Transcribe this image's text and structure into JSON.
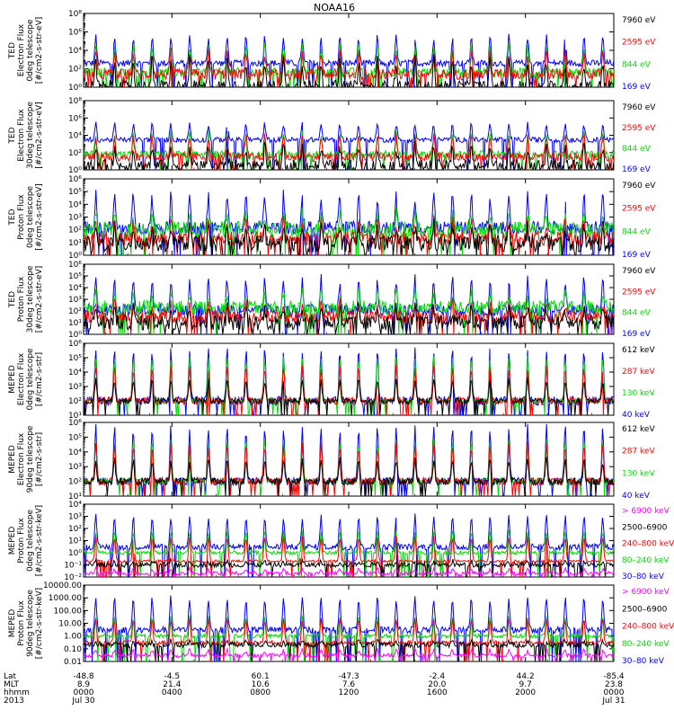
{
  "title": "NOAA16",
  "chart_data": [
    {
      "type": "line",
      "panel_id": "ted-electron-0deg",
      "ylabel": [
        "TED",
        "Electron Flux",
        "0deg telescope",
        "[#/cm2-s-str-eV]"
      ],
      "yscale": "log",
      "ylim": [
        1,
        100000000
      ],
      "yticks": [
        {
          "label": "10⁰",
          "value": 1
        },
        {
          "label": "10²",
          "value": 100
        },
        {
          "label": "10⁴",
          "value": 10000
        },
        {
          "label": "10⁶",
          "value": 1000000
        },
        {
          "label": "10⁸",
          "value": 100000000
        }
      ],
      "series": [
        {
          "name": "7960 eV",
          "color": "#000000",
          "base": 1,
          "peak": 800,
          "noise": 1.5,
          "floor": 1
        },
        {
          "name": "2595 eV",
          "color": "#ff0000",
          "base": 25,
          "peak": 6000,
          "noise": 1.2,
          "floor": 1
        },
        {
          "name": "844 eV",
          "color": "#00dd00",
          "base": 40,
          "peak": 30000,
          "noise": 1.0,
          "floor": 1
        },
        {
          "name": "169 eV",
          "color": "#0000ff",
          "base": 400,
          "peak": 300000,
          "noise": 0.7,
          "floor": 1
        }
      ]
    },
    {
      "type": "line",
      "panel_id": "ted-electron-30deg",
      "ylabel": [
        "TED",
        "Electron Flux",
        "30deg telescope",
        "[#/cm2-s-str-eV]"
      ],
      "yscale": "log",
      "ylim": [
        1,
        100000000
      ],
      "yticks": [
        {
          "label": "10⁰",
          "value": 1
        },
        {
          "label": "10²",
          "value": 100
        },
        {
          "label": "10⁴",
          "value": 10000
        },
        {
          "label": "10⁶",
          "value": 1000000
        },
        {
          "label": "10⁸",
          "value": 100000000
        }
      ],
      "series": [
        {
          "name": "7960 eV",
          "color": "#000000",
          "base": 3,
          "peak": 500,
          "noise": 1.4,
          "floor": 1
        },
        {
          "name": "2595 eV",
          "color": "#ff0000",
          "base": 30,
          "peak": 8000,
          "noise": 1.0,
          "floor": 1
        },
        {
          "name": "844 eV",
          "color": "#00dd00",
          "base": 60,
          "peak": 20000,
          "noise": 0.9,
          "floor": 1
        },
        {
          "name": "169 eV",
          "color": "#0000ff",
          "base": 3000,
          "peak": 200000,
          "noise": 0.6,
          "floor": 1
        }
      ]
    },
    {
      "type": "line",
      "panel_id": "ted-proton-0deg",
      "ylabel": [
        "TED",
        "Proton Flux",
        "0deg telescope",
        "[#/cm2-s-str-eV]"
      ],
      "yscale": "log",
      "ylim": [
        1,
        1000000
      ],
      "yticks": [
        {
          "label": "10⁰",
          "value": 1
        },
        {
          "label": "10¹",
          "value": 10
        },
        {
          "label": "10²",
          "value": 100
        },
        {
          "label": "10³",
          "value": 1000
        },
        {
          "label": "10⁴",
          "value": 10000
        },
        {
          "label": "10⁵",
          "value": 100000
        },
        {
          "label": "10⁶",
          "value": 1000000
        }
      ],
      "series": [
        {
          "name": "7960 eV",
          "color": "#000000",
          "base": 8,
          "peak": 200,
          "noise": 1.3,
          "floor": 1
        },
        {
          "name": "2595 eV",
          "color": "#ff0000",
          "base": 20,
          "peak": 400,
          "noise": 1.1,
          "floor": 1
        },
        {
          "name": "844 eV",
          "color": "#00dd00",
          "base": 100,
          "peak": 1500,
          "noise": 1.3,
          "floor": 1
        },
        {
          "name": "169 eV",
          "color": "#0000ff",
          "base": 150,
          "peak": 50000,
          "noise": 1.0,
          "floor": 1
        }
      ]
    },
    {
      "type": "line",
      "panel_id": "ted-proton-30deg",
      "ylabel": [
        "TED",
        "Proton Flux",
        "30deg telescope",
        "[#/cm2-s-str-eV]"
      ],
      "yscale": "log",
      "ylim": [
        1,
        1000000
      ],
      "yticks": [
        {
          "label": "10⁰",
          "value": 1
        },
        {
          "label": "10¹",
          "value": 10
        },
        {
          "label": "10²",
          "value": 100
        },
        {
          "label": "10³",
          "value": 1000
        },
        {
          "label": "10⁴",
          "value": 10000
        },
        {
          "label": "10⁵",
          "value": 100000
        },
        {
          "label": "10⁶",
          "value": 1000000
        }
      ],
      "series": [
        {
          "name": "7960 eV",
          "color": "#000000",
          "base": 10,
          "peak": 200,
          "noise": 1.3,
          "floor": 1
        },
        {
          "name": "2595 eV",
          "color": "#ff0000",
          "base": 30,
          "peak": 400,
          "noise": 1.1,
          "floor": 1
        },
        {
          "name": "844 eV",
          "color": "#00dd00",
          "base": 200,
          "peak": 3000,
          "noise": 1.2,
          "floor": 1
        },
        {
          "name": "169 eV",
          "color": "#0000ff",
          "base": 120,
          "peak": 60000,
          "noise": 1.0,
          "floor": 1
        }
      ]
    },
    {
      "type": "line",
      "panel_id": "meped-electron-0deg",
      "ylabel": [
        "MEPED",
        "Electron Flux",
        "0deg telescope",
        "[#/cm2-s-str]"
      ],
      "yscale": "log",
      "ylim": [
        10,
        1000000
      ],
      "yticks": [
        {
          "label": "10¹",
          "value": 10
        },
        {
          "label": "10²",
          "value": 100
        },
        {
          "label": "10³",
          "value": 1000
        },
        {
          "label": "10⁴",
          "value": 10000
        },
        {
          "label": "10⁵",
          "value": 100000
        },
        {
          "label": "10⁶",
          "value": 1000000
        }
      ],
      "series": [
        {
          "name": "612 keV",
          "color": "#000000",
          "base": 100,
          "peak": 3000,
          "noise": 0.4,
          "floor": 10
        },
        {
          "name": "287 keV",
          "color": "#ff0000",
          "base": 100,
          "peak": 20000,
          "noise": 0.5,
          "floor": 10
        },
        {
          "name": "130 keV",
          "color": "#00dd00",
          "base": 100,
          "peak": 100000,
          "noise": 0.3,
          "floor": 10
        },
        {
          "name": "40 keV",
          "color": "#0000ff",
          "base": 100,
          "peak": 400000,
          "noise": 0.6,
          "floor": 10
        }
      ]
    },
    {
      "type": "line",
      "panel_id": "meped-electron-90deg",
      "ylabel": [
        "MEPED",
        "Electron Flux",
        "90deg telescope",
        "[#/cm2-s-str]"
      ],
      "yscale": "log",
      "ylim": [
        10,
        1000000
      ],
      "yticks": [
        {
          "label": "10¹",
          "value": 10
        },
        {
          "label": "10²",
          "value": 100
        },
        {
          "label": "10³",
          "value": 1000
        },
        {
          "label": "10⁴",
          "value": 10000
        },
        {
          "label": "10⁵",
          "value": 100000
        },
        {
          "label": "10⁶",
          "value": 1000000
        }
      ],
      "series": [
        {
          "name": "612 keV",
          "color": "#000000",
          "base": 100,
          "peak": 3000,
          "noise": 0.5,
          "floor": 10
        },
        {
          "name": "287 keV",
          "color": "#ff0000",
          "base": 100,
          "peak": 30000,
          "noise": 0.5,
          "floor": 10
        },
        {
          "name": "130 keV",
          "color": "#00dd00",
          "base": 100,
          "peak": 60000,
          "noise": 0.4,
          "floor": 10
        },
        {
          "name": "40 keV",
          "color": "#0000ff",
          "base": 100,
          "peak": 500000,
          "noise": 0.5,
          "floor": 10
        }
      ]
    },
    {
      "type": "line",
      "panel_id": "meped-proton-0deg",
      "ylabel": [
        "MEPED",
        "Proton Flux",
        "0deg telescope",
        "[#/cm2-s-str-keV]"
      ],
      "yscale": "log",
      "ylim": [
        0.01,
        10000
      ],
      "yticks": [
        {
          "label": "10⁻²",
          "value": 0.01
        },
        {
          "label": "10⁻¹",
          "value": 0.1
        },
        {
          "label": "10⁰",
          "value": 1
        },
        {
          "label": "10¹",
          "value": 10
        },
        {
          "label": "10²",
          "value": 100
        },
        {
          "label": "10³",
          "value": 1000
        },
        {
          "label": "10⁴",
          "value": 10000
        }
      ],
      "series": [
        {
          "name": "> 6900 keV",
          "color": "#ff00ff",
          "base": 0.02,
          "peak": 0.05,
          "noise": 0.3,
          "floor": 0.01
        },
        {
          "name": "2500–6900",
          "color": "#000000",
          "base": 0.1,
          "peak": 0.2,
          "noise": 0.4,
          "floor": 0.01
        },
        {
          "name": "240–800 keV",
          "color": "#ff0000",
          "base": 0.2,
          "peak": 20,
          "noise": 0.2,
          "floor": 0.01
        },
        {
          "name": "80–240 keV",
          "color": "#00dd00",
          "base": 1,
          "peak": 60,
          "noise": 0.3,
          "floor": 0.01
        },
        {
          "name": "30–80 keV",
          "color": "#0000ff",
          "base": 3,
          "peak": 1000,
          "noise": 0.5,
          "floor": 0.01
        }
      ]
    },
    {
      "type": "line",
      "panel_id": "meped-proton-90deg",
      "ylabel": [
        "MEPED",
        "Proton Flux",
        "90deg telescope",
        "[#/cm2-s-str-keV]"
      ],
      "yscale": "log",
      "ylim": [
        0.01,
        10000
      ],
      "yticks": [
        {
          "label": "0.01",
          "value": 0.01
        },
        {
          "label": "0.10",
          "value": 0.1
        },
        {
          "label": "1.00",
          "value": 1
        },
        {
          "label": "10.00",
          "value": 10
        },
        {
          "label": "100.00",
          "value": 100
        },
        {
          "label": "1000.00",
          "value": 1000
        },
        {
          "label": "10000.00",
          "value": 10000
        }
      ],
      "series": [
        {
          "name": "> 6900 keV",
          "color": "#ff00ff",
          "base": 0.03,
          "peak": 0.08,
          "noise": 0.3,
          "floor": 0.01
        },
        {
          "name": "2500–6900",
          "color": "#000000",
          "base": 0.2,
          "peak": 0.4,
          "noise": 0.4,
          "floor": 0.01
        },
        {
          "name": "240–800 keV",
          "color": "#ff0000",
          "base": 0.3,
          "peak": 20,
          "noise": 0.3,
          "floor": 0.01
        },
        {
          "name": "80–240 keV",
          "color": "#00dd00",
          "base": 1,
          "peak": 30,
          "noise": 0.3,
          "floor": 0.01
        },
        {
          "name": "30–80 keV",
          "color": "#0000ff",
          "base": 3,
          "peak": 1000,
          "noise": 0.5,
          "floor": 0.01
        }
      ]
    }
  ],
  "x_axis": {
    "row_labels": [
      "Lat",
      "MLT",
      "hhmm",
      "2013"
    ],
    "ticks": [
      {
        "hour": 0,
        "lat": "-48.8",
        "mlt": "8.9",
        "hhmm": "0000",
        "date": "Jul 30"
      },
      {
        "hour": 4,
        "lat": "-4.5",
        "mlt": "21.4",
        "hhmm": "0400",
        "date": ""
      },
      {
        "hour": 8,
        "lat": "60.1",
        "mlt": "10.6",
        "hhmm": "0800",
        "date": ""
      },
      {
        "hour": 12,
        "lat": "-47.3",
        "mlt": "7.6",
        "hhmm": "1200",
        "date": ""
      },
      {
        "hour": 16,
        "lat": "-2.4",
        "mlt": "20.0",
        "hhmm": "1600",
        "date": ""
      },
      {
        "hour": 20,
        "lat": "44.2",
        "mlt": "9.7",
        "hhmm": "2000",
        "date": ""
      },
      {
        "hour": 24,
        "lat": "-85.4",
        "mlt": "23.8",
        "hhmm": "0000",
        "date": "Jul 31"
      }
    ],
    "xlim": [
      0,
      24
    ]
  }
}
